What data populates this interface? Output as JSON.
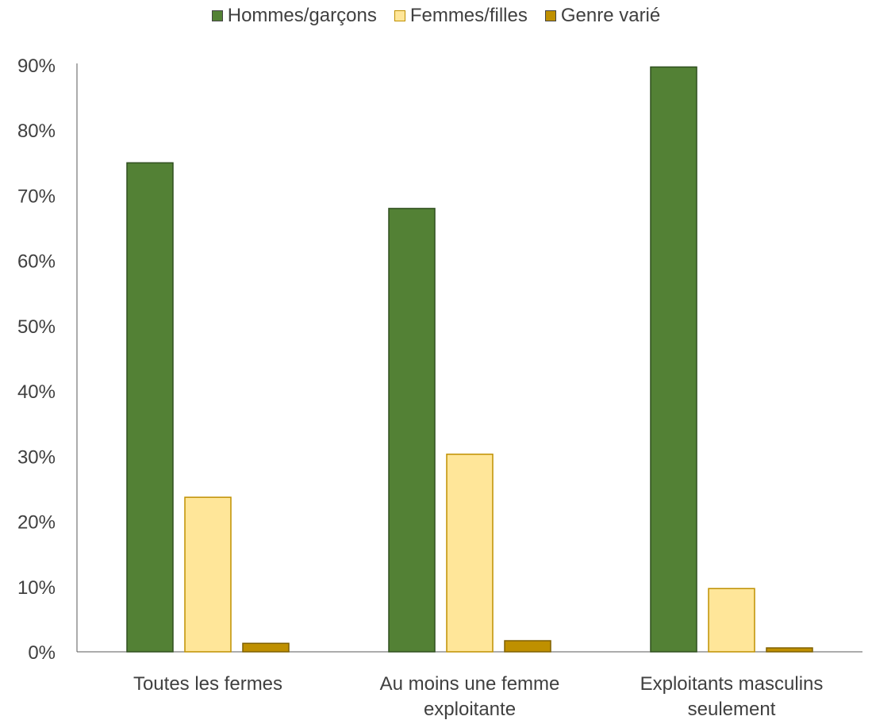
{
  "chart_data": {
    "type": "bar",
    "categories": [
      [
        "Toutes les fermes"
      ],
      [
        "Au moins une femme",
        "exploitante"
      ],
      [
        "Exploitants masculins",
        "seulement"
      ]
    ],
    "series": [
      {
        "name": "Hommes/garçons",
        "values": [
          75,
          68,
          89.7
        ],
        "color": "#538135",
        "stroke": "#2f4f1f"
      },
      {
        "name": "Femmes/filles",
        "values": [
          23.7,
          30.3,
          9.7
        ],
        "color": "#ffe699",
        "stroke": "#bf9000"
      },
      {
        "name": "Genre varié",
        "values": [
          1.3,
          1.7,
          0.6
        ],
        "color": "#bf9000",
        "stroke": "#7f6000"
      }
    ],
    "yticks": [
      "0%",
      "10%",
      "20%",
      "30%",
      "40%",
      "50%",
      "60%",
      "70%",
      "80%",
      "90%"
    ],
    "ylim": [
      0,
      90
    ],
    "legend": "top-center",
    "grid": false
  }
}
